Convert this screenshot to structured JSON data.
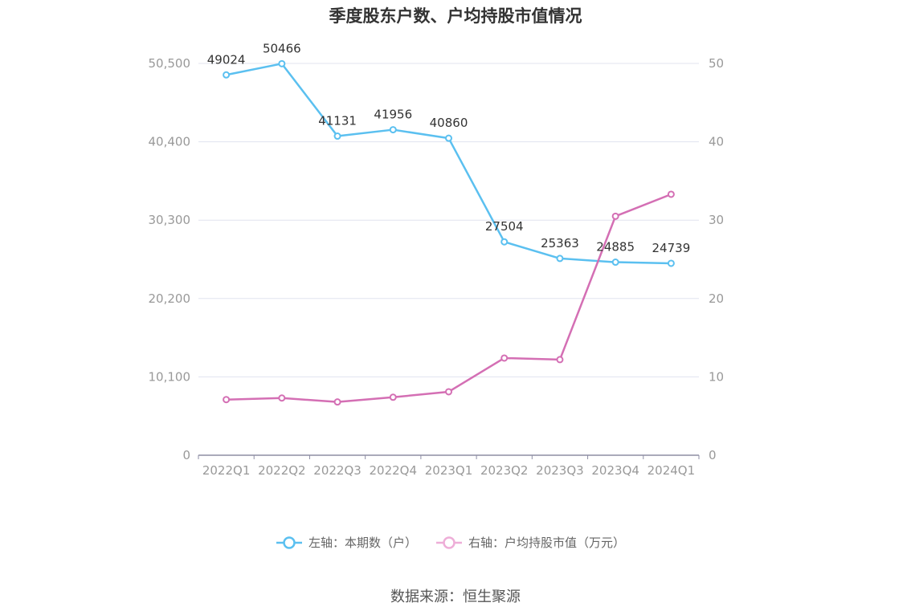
{
  "chart_data": {
    "type": "line",
    "title": "季度股东户数、户均持股市值情况",
    "categories": [
      "2022Q1",
      "2022Q2",
      "2022Q3",
      "2022Q4",
      "2023Q1",
      "2023Q2",
      "2023Q3",
      "2023Q4",
      "2024Q1"
    ],
    "y_left": {
      "ticks": [
        "0",
        "10,100",
        "20,200",
        "30,300",
        "40,400",
        "50,500"
      ],
      "min": 0,
      "max": 50500
    },
    "y_right": {
      "ticks": [
        "0",
        "10",
        "20",
        "30",
        "40",
        "50"
      ],
      "min": 0,
      "max": 50
    },
    "grid": true,
    "legend_position": "bottom",
    "series": [
      {
        "name": "左轴：本期数（户）",
        "axis": "left",
        "color": "#5bc0f0",
        "values": [
          49024,
          50466,
          41131,
          41956,
          40860,
          27504,
          25363,
          24885,
          24739
        ],
        "labels": [
          "49024",
          "50466",
          "41131",
          "41956",
          "40860",
          "27504",
          "25363",
          "24885",
          "24739"
        ]
      },
      {
        "name": "右轴：户均持股市值（万元）",
        "axis": "right",
        "color": "#d46fb4",
        "values": [
          7.1,
          7.3,
          6.8,
          7.4,
          8.1,
          12.4,
          12.2,
          30.5,
          33.3
        ]
      }
    ]
  },
  "source": "数据来源：恒生聚源"
}
